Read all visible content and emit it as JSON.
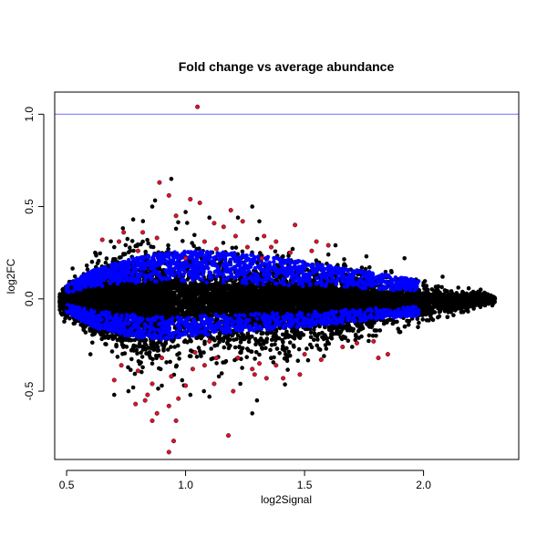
{
  "chart_data": {
    "type": "scatter",
    "title": "Fold change vs average abundance",
    "xlabel": "log2Signal",
    "ylabel": "log2FC",
    "xlim": [
      0.45,
      2.4
    ],
    "ylim": [
      -0.87,
      1.12
    ],
    "x_ticks": [
      0.5,
      1.0,
      1.5,
      2.0
    ],
    "x_tick_labels": [
      "0.5",
      "1.0",
      "1.5",
      "2.0"
    ],
    "y_ticks": [
      -0.5,
      0.0,
      0.5,
      1.0
    ],
    "y_tick_labels": [
      "-0.5",
      "0.0",
      "0.5",
      "1.0"
    ],
    "grid": false,
    "reference_line": {
      "y": 1.0,
      "color": "#6f6fff"
    },
    "colors": {
      "black": "#000000",
      "blue": "#0000ff",
      "red": "#e0102a"
    },
    "series_points": {
      "red": [
        [
          1.05,
          1.04
        ],
        [
          0.89,
          0.63
        ],
        [
          0.93,
          0.56
        ],
        [
          1.06,
          0.52
        ],
        [
          1.02,
          0.54
        ],
        [
          0.96,
          0.45
        ],
        [
          1.12,
          0.41
        ],
        [
          1.19,
          0.48
        ],
        [
          1.24,
          0.42
        ],
        [
          1.16,
          0.39
        ],
        [
          1.08,
          0.31
        ],
        [
          0.82,
          0.36
        ],
        [
          0.88,
          0.33
        ],
        [
          0.74,
          0.36
        ],
        [
          0.8,
          0.26
        ],
        [
          0.65,
          0.32
        ],
        [
          0.72,
          0.31
        ],
        [
          1.21,
          0.34
        ],
        [
          1.26,
          0.28
        ],
        [
          1.13,
          0.27
        ],
        [
          1.33,
          0.34
        ],
        [
          1.38,
          0.31
        ],
        [
          1.46,
          0.4
        ],
        [
          1.55,
          0.31
        ],
        [
          1.6,
          0.29
        ],
        [
          1.53,
          0.26
        ],
        [
          1.44,
          0.25
        ],
        [
          1.32,
          0.22
        ],
        [
          1.36,
          0.28
        ],
        [
          1.0,
          0.22
        ],
        [
          1.31,
          -0.35
        ],
        [
          1.28,
          -0.38
        ],
        [
          1.41,
          -0.43
        ],
        [
          1.38,
          -0.36
        ],
        [
          1.48,
          -0.41
        ],
        [
          1.34,
          -0.43
        ],
        [
          1.29,
          -0.41
        ],
        [
          1.72,
          -0.24
        ],
        [
          1.79,
          -0.23
        ],
        [
          1.81,
          -0.32
        ],
        [
          1.85,
          -0.3
        ],
        [
          1.66,
          -0.26
        ],
        [
          0.84,
          -0.52
        ],
        [
          0.88,
          -0.62
        ],
        [
          0.93,
          -0.58
        ],
        [
          0.86,
          -0.66
        ],
        [
          0.96,
          -0.66
        ],
        [
          0.95,
          -0.77
        ],
        [
          0.93,
          -0.83
        ],
        [
          1.18,
          -0.74
        ],
        [
          0.79,
          -0.57
        ],
        [
          0.83,
          -0.55
        ],
        [
          0.97,
          -0.54
        ],
        [
          1.0,
          -0.47
        ],
        [
          1.12,
          -0.46
        ],
        [
          1.2,
          -0.5
        ],
        [
          1.13,
          -0.32
        ],
        [
          0.9,
          -0.32
        ],
        [
          0.94,
          -0.42
        ],
        [
          0.8,
          -0.39
        ],
        [
          1.08,
          -0.36
        ],
        [
          1.03,
          -0.38
        ],
        [
          1.22,
          -0.32
        ],
        [
          0.86,
          -0.46
        ],
        [
          1.5,
          -0.3
        ],
        [
          1.57,
          -0.33
        ],
        [
          0.7,
          -0.44
        ],
        [
          0.73,
          -0.36
        ],
        [
          1.04,
          -0.29
        ],
        [
          1.1,
          -0.23
        ]
      ],
      "black": [
        [
          0.94,
          0.65
        ],
        [
          0.86,
          0.5
        ],
        [
          1.28,
          0.5
        ],
        [
          1.0,
          0.47
        ],
        [
          1.1,
          0.44
        ],
        [
          1.31,
          0.42
        ],
        [
          0.78,
          0.43
        ],
        [
          0.96,
          0.38
        ],
        [
          1.22,
          0.44
        ],
        [
          0.82,
          0.31
        ],
        [
          0.62,
          0.25
        ],
        [
          0.7,
          0.28
        ],
        [
          1.45,
          0.27
        ],
        [
          1.63,
          0.29
        ],
        [
          1.76,
          0.23
        ],
        [
          1.92,
          0.22
        ],
        [
          2.08,
          0.12
        ],
        [
          2.12,
          0.03
        ],
        [
          2.2,
          0.03
        ],
        [
          2.26,
          -0.02
        ],
        [
          2.3,
          0.0
        ],
        [
          2.24,
          0.05
        ],
        [
          2.18,
          -0.06
        ],
        [
          2.06,
          -0.1
        ],
        [
          1.98,
          -0.13
        ],
        [
          1.9,
          -0.18
        ],
        [
          1.7,
          -0.26
        ],
        [
          1.56,
          -0.27
        ],
        [
          1.42,
          -0.3
        ],
        [
          1.28,
          -0.62
        ],
        [
          1.3,
          -0.55
        ],
        [
          1.1,
          -0.53
        ],
        [
          1.02,
          -0.52
        ],
        [
          0.9,
          -0.47
        ],
        [
          0.78,
          -0.48
        ],
        [
          0.76,
          -0.5
        ],
        [
          0.7,
          -0.52
        ],
        [
          0.6,
          -0.3
        ],
        [
          0.56,
          -0.14
        ],
        [
          0.5,
          -0.05
        ],
        [
          0.48,
          0.0
        ],
        [
          0.52,
          0.06
        ],
        [
          1.6,
          0.24
        ],
        [
          1.36,
          -0.32
        ],
        [
          1.23,
          -0.46
        ],
        [
          1.14,
          -0.42
        ],
        [
          0.86,
          -0.35
        ],
        [
          0.76,
          -0.22
        ],
        [
          0.66,
          -0.18
        ],
        [
          1.8,
          -0.2
        ]
      ]
    },
    "black_band": {
      "x": [
        0.47,
        0.6,
        0.75,
        0.9,
        1.05,
        1.2,
        1.4,
        1.6,
        1.8,
        2.0,
        2.15,
        2.3
      ],
      "upper": [
        0.05,
        0.17,
        0.22,
        0.25,
        0.25,
        0.23,
        0.2,
        0.16,
        0.12,
        0.08,
        0.05,
        0.02
      ],
      "lower": [
        -0.07,
        -0.19,
        -0.27,
        -0.32,
        -0.33,
        -0.3,
        -0.26,
        -0.22,
        -0.17,
        -0.11,
        -0.07,
        -0.03
      ]
    },
    "blue_band": {
      "x": [
        0.5,
        0.6,
        0.75,
        0.9,
        1.05,
        1.2,
        1.4,
        1.6,
        1.8,
        1.98
      ],
      "upper_outer": [
        0.07,
        0.15,
        0.21,
        0.25,
        0.26,
        0.25,
        0.22,
        0.18,
        0.14,
        0.1
      ],
      "upper_inner": [
        0.03,
        0.06,
        0.08,
        0.09,
        0.09,
        0.08,
        0.07,
        0.06,
        0.05,
        0.04
      ],
      "lower_inner": [
        -0.03,
        -0.06,
        -0.08,
        -0.09,
        -0.09,
        -0.08,
        -0.07,
        -0.06,
        -0.05,
        -0.04
      ],
      "lower_outer": [
        -0.07,
        -0.15,
        -0.2,
        -0.22,
        -0.2,
        -0.18,
        -0.16,
        -0.14,
        -0.11,
        -0.09
      ]
    }
  }
}
